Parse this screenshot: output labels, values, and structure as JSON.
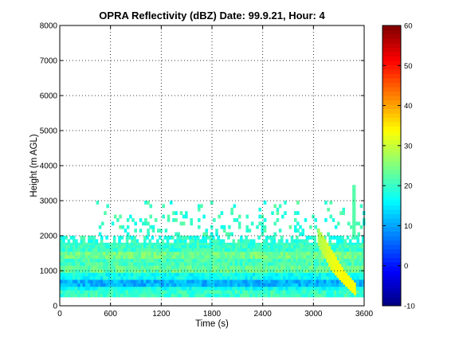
{
  "chart_data": {
    "type": "heatmap",
    "title": "OPRA Reflectivity (dBZ)  Date: 99.9.21, Hour: 4",
    "xlabel": "Time (s)",
    "ylabel": "Height (m AGL)",
    "xlim": [
      0,
      3600
    ],
    "ylim": [
      0,
      8000
    ],
    "xticks": [
      "0",
      "600",
      "1200",
      "1800",
      "2400",
      "3000",
      "3600"
    ],
    "yticks": [
      "0",
      "1000",
      "2000",
      "3000",
      "4000",
      "5000",
      "6000",
      "7000",
      "8000"
    ],
    "grid": true,
    "colorbar": {
      "clim": [
        -10,
        60
      ],
      "ticks": [
        "-10",
        "0",
        "10",
        "20",
        "30",
        "40",
        "50",
        "60"
      ],
      "colormap": "jet"
    },
    "layers": [
      {
        "z0": 250,
        "z1": 450,
        "t0": 0,
        "t1": 3600,
        "dbz": 20
      },
      {
        "z0": 450,
        "z1": 550,
        "t0": 0,
        "t1": 3600,
        "dbz": 17
      },
      {
        "z0": 550,
        "z1": 750,
        "t0": 0,
        "t1": 3600,
        "dbz": 11
      },
      {
        "z0": 750,
        "z1": 950,
        "t0": 0,
        "t1": 3600,
        "dbz": 17
      },
      {
        "z0": 950,
        "z1": 1150,
        "t0": 0,
        "t1": 3600,
        "dbz": 23
      },
      {
        "z0": 1150,
        "z1": 1350,
        "t0": 0,
        "t1": 3600,
        "dbz": 21
      },
      {
        "z0": 1350,
        "z1": 1550,
        "t0": 0,
        "t1": 3600,
        "dbz": 24
      },
      {
        "z0": 1550,
        "z1": 1800,
        "t0": 0,
        "t1": 3600,
        "dbz": 20
      },
      {
        "z0": 1800,
        "z1": 2000,
        "t0": 0,
        "t1": 3600,
        "dbz": 19
      }
    ],
    "upper_echo": {
      "z0": 2000,
      "z1": 3000,
      "t0": 400,
      "t1": 3600,
      "dbz": 20
    },
    "slant_feature": [
      {
        "t": 3050,
        "z0": 1700,
        "z1": 2200,
        "dbz": 28
      },
      {
        "t": 3200,
        "z0": 1000,
        "z1": 1600,
        "dbz": 32
      },
      {
        "t": 3350,
        "z0": 600,
        "z1": 1000,
        "dbz": 34
      },
      {
        "t": 3500,
        "z0": 250,
        "z1": 600,
        "dbz": 33
      }
    ],
    "tall_column": {
      "t": 3460,
      "z0": 2000,
      "z1": 3450,
      "dbz": 22
    }
  }
}
